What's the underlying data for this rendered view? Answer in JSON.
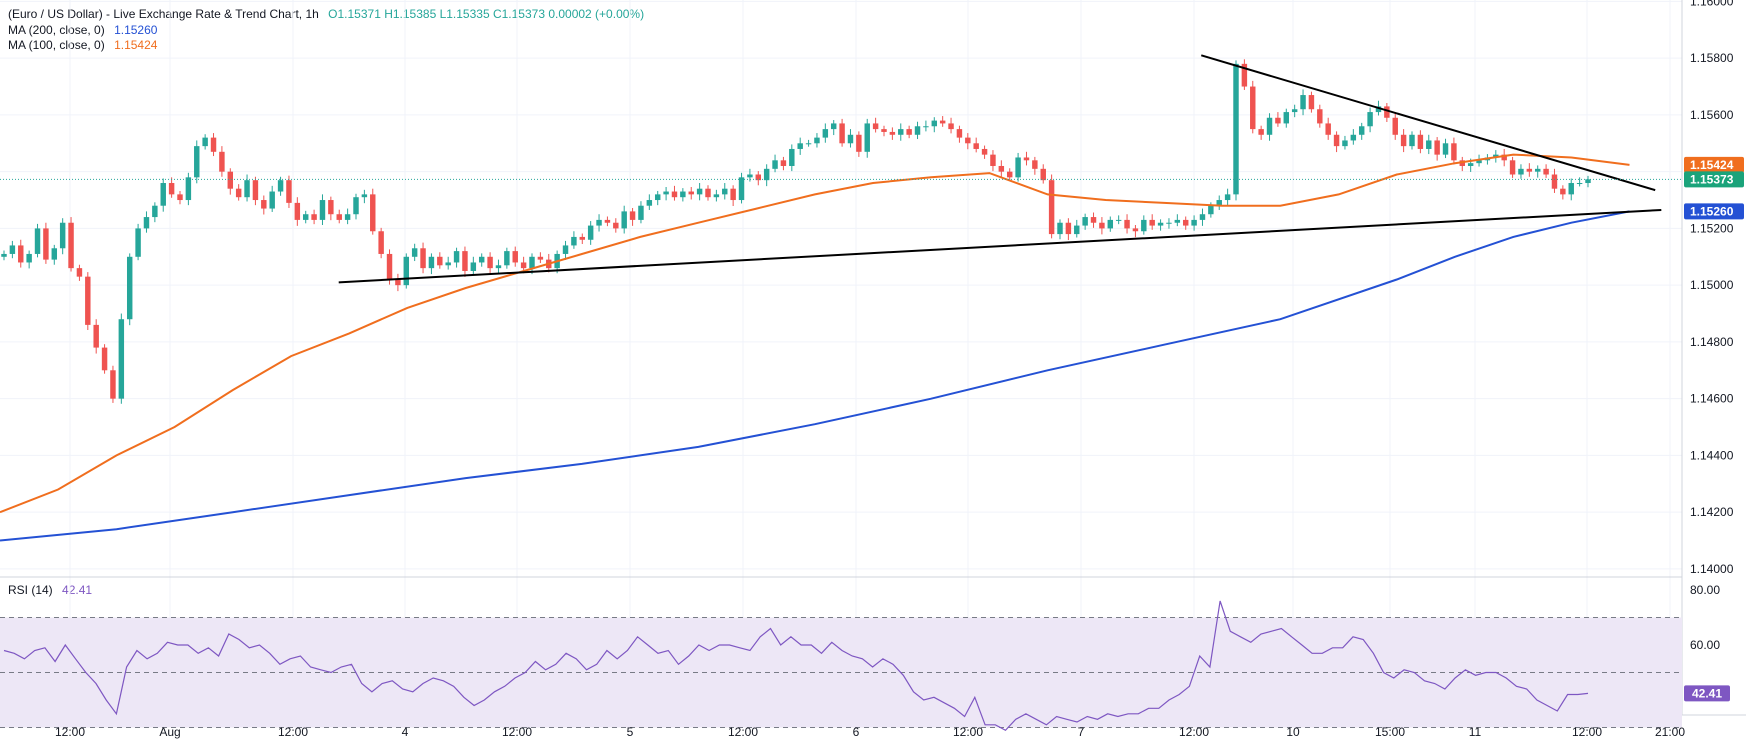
{
  "header": {
    "title": "(Euro / US Dollar) - Live Exchange Rate & Trend Chart, 1h",
    "ohlc": "O1.15371 H1.15385 L1.15335 C1.15373 0.00002 (+0.00%)",
    "ma200_label": "MA (200, close, 0)",
    "ma200_value": "1.15260",
    "ma100_label": "MA (100, close, 0)",
    "ma100_value": "1.15424",
    "rsi_label": "RSI (14)",
    "rsi_value": "42.41"
  },
  "chart_data": {
    "type": "candlestick",
    "price_ticks": [
      "1.16000",
      "1.15800",
      "1.15600",
      "1.15400",
      "1.15200",
      "1.15000",
      "1.14800",
      "1.14600",
      "1.14400",
      "1.14200",
      "1.14000"
    ],
    "price_range": [
      1.13975,
      1.16005
    ],
    "x_ticks": [
      "12:00",
      "Aug",
      "12:00",
      "4",
      "12:00",
      "5",
      "12:00",
      "6",
      "12:00",
      "7",
      "12:00",
      "10",
      "15:00",
      "11",
      "12:00",
      "21:00"
    ],
    "price_labels": [
      {
        "text": "1.15424",
        "value": 1.15424,
        "color": "#f06e1e"
      },
      {
        "text": "1.15373",
        "value": 1.15373,
        "color": "#1aa37a"
      },
      {
        "text": "1.15260",
        "value": 1.1526,
        "color": "#2451d4"
      }
    ],
    "last_price": 1.15373,
    "candles_close": [
      1.1511,
      1.1514,
      1.1508,
      1.1511,
      1.152,
      1.1509,
      1.1513,
      1.1522,
      1.1506,
      1.1503,
      1.1486,
      1.1478,
      1.147,
      1.146,
      1.1488,
      1.151,
      1.152,
      1.1524,
      1.1528,
      1.1536,
      1.1532,
      1.153,
      1.1538,
      1.1549,
      1.1552,
      1.1547,
      1.154,
      1.1534,
      1.1531,
      1.1537,
      1.153,
      1.1527,
      1.1533,
      1.1537,
      1.1529,
      1.1523,
      1.1525,
      1.1523,
      1.153,
      1.1525,
      1.1523,
      1.1525,
      1.1531,
      1.1532,
      1.1519,
      1.1511,
      1.1502,
      1.15,
      1.151,
      1.1513,
      1.1506,
      1.151,
      1.1507,
      1.1508,
      1.1512,
      1.1505,
      1.1508,
      1.151,
      1.1506,
      1.1507,
      1.1512,
      1.1508,
      1.1506,
      1.151,
      1.1509,
      1.1506,
      1.1511,
      1.1514,
      1.1517,
      1.1516,
      1.1521,
      1.1523,
      1.1522,
      1.152,
      1.1526,
      1.1523,
      1.1528,
      1.153,
      1.1532,
      1.1533,
      1.1531,
      1.1533,
      1.1532,
      1.1534,
      1.1531,
      1.1532,
      1.1534,
      1.153,
      1.1538,
      1.1539,
      1.1537,
      1.1541,
      1.1544,
      1.1542,
      1.1548,
      1.155,
      1.155,
      1.1552,
      1.1555,
      1.1557,
      1.155,
      1.1553,
      1.1547,
      1.1557,
      1.1555,
      1.1554,
      1.1553,
      1.1555,
      1.1553,
      1.1556,
      1.1556,
      1.1558,
      1.1557,
      1.1555,
      1.1552,
      1.155,
      1.1548,
      1.1546,
      1.1542,
      1.154,
      1.1538,
      1.1545,
      1.1544,
      1.1541,
      1.1537,
      1.1518,
      1.1522,
      1.1518,
      1.1521,
      1.1524,
      1.1522,
      1.152,
      1.1523,
      1.1523,
      1.152,
      1.1519,
      1.1523,
      1.1521,
      1.1522,
      1.1522,
      1.1523,
      1.1521,
      1.1523,
      1.1525,
      1.1528,
      1.153,
      1.1532,
      1.1578,
      1.157,
      1.1555,
      1.1553,
      1.1559,
      1.1557,
      1.1561,
      1.1562,
      1.1567,
      1.1562,
      1.1557,
      1.1553,
      1.1549,
      1.1551,
      1.1553,
      1.1556,
      1.1561,
      1.1563,
      1.1559,
      1.1553,
      1.1549,
      1.1553,
      1.1548,
      1.1551,
      1.1546,
      1.155,
      1.1544,
      1.1542,
      1.1543,
      1.1544,
      1.1545,
      1.1546,
      1.1544,
      1.1539,
      1.1541,
      1.154,
      1.1541,
      1.1539,
      1.1534,
      1.1532,
      1.1536,
      1.1536,
      1.15373
    ],
    "ma100_curve": [
      [
        1.142,
        0
      ],
      [
        1.1428,
        0.0333
      ],
      [
        1.144,
        0.0667
      ],
      [
        1.145,
        0.1
      ],
      [
        1.1463,
        0.1333
      ],
      [
        1.1475,
        0.1667
      ],
      [
        1.1483,
        0.2
      ],
      [
        1.1492,
        0.2333
      ],
      [
        1.1499,
        0.2667
      ],
      [
        1.1505,
        0.3
      ],
      [
        1.1511,
        0.3333
      ],
      [
        1.1517,
        0.3667
      ],
      [
        1.1522,
        0.4
      ],
      [
        1.1527,
        0.4333
      ],
      [
        1.1532,
        0.4667
      ],
      [
        1.1536,
        0.5
      ],
      [
        1.1538,
        0.5333
      ],
      [
        1.15395,
        0.5667
      ],
      [
        1.1532,
        0.6
      ],
      [
        1.153,
        0.6333
      ],
      [
        1.1529,
        0.6667
      ],
      [
        1.1528,
        0.7
      ],
      [
        1.1528,
        0.7333
      ],
      [
        1.1532,
        0.7667
      ],
      [
        1.1539,
        0.8
      ],
      [
        1.1543,
        0.8333
      ],
      [
        1.1546,
        0.8667
      ],
      [
        1.1545,
        0.9
      ],
      [
        1.15424,
        0.9333
      ]
    ],
    "ma200_curve": [
      [
        1.141,
        0
      ],
      [
        1.1414,
        0.0667
      ],
      [
        1.142,
        0.1333
      ],
      [
        1.1426,
        0.2
      ],
      [
        1.1432,
        0.2667
      ],
      [
        1.1437,
        0.3333
      ],
      [
        1.1443,
        0.4
      ],
      [
        1.1451,
        0.4667
      ],
      [
        1.146,
        0.5333
      ],
      [
        1.147,
        0.6
      ],
      [
        1.1479,
        0.6667
      ],
      [
        1.1488,
        0.7333
      ],
      [
        1.1502,
        0.8
      ],
      [
        1.151,
        0.8333
      ],
      [
        1.1517,
        0.8667
      ],
      [
        1.1522,
        0.9
      ],
      [
        1.1526,
        0.9333
      ]
    ],
    "rsi_range": [
      40,
      80
    ],
    "rsi_ticks": [
      "80.00",
      "60.00"
    ],
    "rsi_levels": [
      70,
      50,
      30
    ],
    "rsi": [
      58,
      57,
      55,
      58,
      59,
      54,
      60,
      55,
      50,
      46,
      40,
      35,
      52,
      58,
      55,
      57,
      61,
      60,
      60,
      57,
      59,
      56,
      64,
      62,
      59,
      60,
      57,
      53,
      55,
      56,
      52,
      51,
      50,
      52,
      53,
      46,
      43,
      46,
      47,
      44,
      43,
      46,
      48,
      47,
      45,
      41,
      38,
      40,
      43,
      45,
      48,
      50,
      54,
      51,
      53,
      57,
      55,
      51,
      53,
      58,
      55,
      58,
      63,
      60,
      57,
      58,
      53,
      56,
      60,
      58,
      60,
      60,
      59,
      58,
      63,
      66,
      60,
      63,
      60,
      60,
      57,
      61,
      58,
      56,
      55,
      52,
      55,
      53,
      49,
      43,
      40,
      41,
      39,
      37,
      34,
      41,
      31,
      31,
      29,
      33,
      35,
      33,
      31,
      34,
      33,
      32,
      34,
      33,
      35,
      34,
      35,
      35,
      37,
      37,
      40,
      42,
      45,
      56,
      52,
      76,
      65,
      63,
      61,
      64,
      65,
      66,
      63,
      60,
      57,
      57,
      59,
      59,
      63,
      62,
      57,
      50,
      48,
      51,
      50,
      47,
      46,
      44,
      48,
      51,
      49,
      50,
      50,
      48,
      45,
      44,
      40,
      38,
      36,
      42,
      42,
      42.41
    ],
    "trendlines": [
      {
        "name": "upper",
        "from": [
          0.688,
          1.1581
        ],
        "to": [
          0.948,
          1.15335
        ]
      },
      {
        "name": "lower",
        "from": [
          0.194,
          1.1501
        ],
        "to": [
          0.9515,
          1.15265
        ]
      }
    ],
    "colors": {
      "up": "#26a69a",
      "down": "#ef5350",
      "ma100": "#f06e1e",
      "ma200": "#2451d4",
      "rsi": "#7e57c2",
      "rsi_band": "#ede7f6",
      "grid": "#f0f3fa"
    }
  }
}
